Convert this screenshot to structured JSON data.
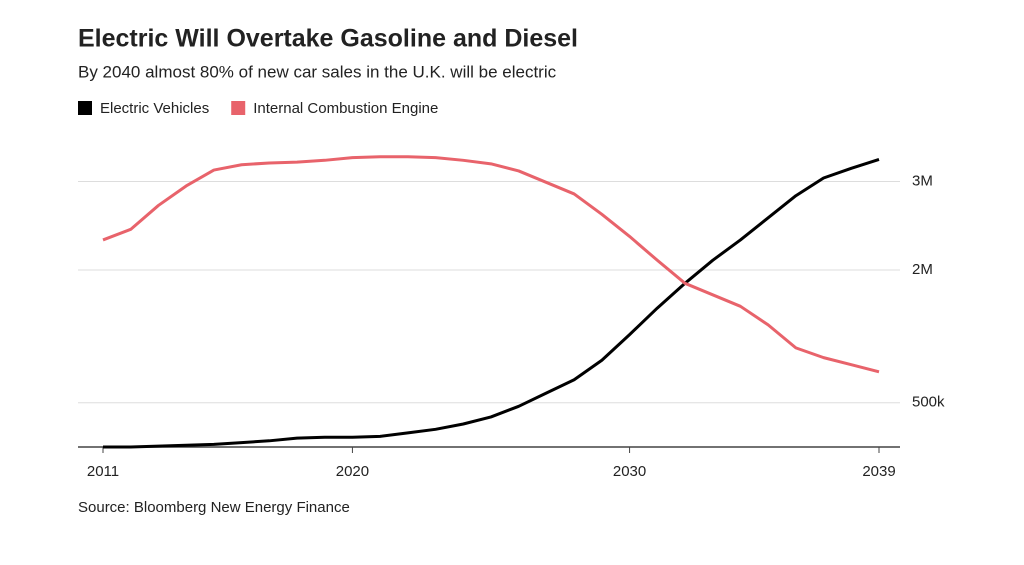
{
  "chart_data": {
    "type": "line",
    "title": "Electric Will Overtake Gasoline and Diesel",
    "subtitle": "By 2040 almost 80% of new car sales in the U.K. will be electric",
    "source": "Source: Bloomberg New Energy Finance",
    "x": [
      2011,
      2012,
      2013,
      2014,
      2015,
      2016,
      2017,
      2018,
      2019,
      2020,
      2021,
      2022,
      2023,
      2024,
      2025,
      2026,
      2027,
      2028,
      2029,
      2030,
      2031,
      2032,
      2033,
      2034,
      2035,
      2036,
      2037,
      2038,
      2039
    ],
    "series": [
      {
        "name": "Electric Vehicles",
        "color": "#000000",
        "values": [
          0,
          0,
          10000,
          20000,
          30000,
          50000,
          70000,
          100000,
          110000,
          110000,
          120000,
          160000,
          200000,
          260000,
          340000,
          460000,
          610000,
          760000,
          980000,
          1270000,
          1570000,
          1850000,
          2110000,
          2340000,
          2590000,
          2840000,
          3040000,
          3150000,
          3250000
        ]
      },
      {
        "name": "Internal Combustion Engine",
        "color": "#e8636b",
        "values": [
          2340000,
          2460000,
          2730000,
          2950000,
          3130000,
          3190000,
          3210000,
          3220000,
          3240000,
          3270000,
          3280000,
          3280000,
          3270000,
          3240000,
          3200000,
          3120000,
          2990000,
          2860000,
          2630000,
          2380000,
          2110000,
          1850000,
          1720000,
          1590000,
          1380000,
          1120000,
          1010000,
          930000,
          850000
        ]
      }
    ],
    "xlim": [
      2011,
      2039
    ],
    "xticks": [
      2011,
      2020,
      2030,
      2039
    ],
    "ylim": [
      0,
      3300000
    ],
    "yticks": [
      {
        "value": 500000,
        "label": "500k"
      },
      {
        "value": 2000000,
        "label": "2M"
      },
      {
        "value": 3000000,
        "label": "3M"
      }
    ],
    "grid": true
  }
}
